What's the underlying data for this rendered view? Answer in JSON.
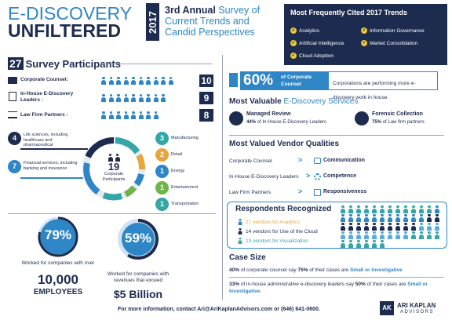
{
  "header": {
    "title_line1": "E-DISCOVERY",
    "title_line2": "UNFILTERED",
    "year": "2017",
    "subtitle_bold": "3rd Annual",
    "subtitle_rest1": " Survey of",
    "subtitle_line2": "Current Trends and",
    "subtitle_line3": "Candid Perspectives"
  },
  "trends": {
    "title": "Most Frequently Cited 2017 Trends",
    "items": [
      "Analytics",
      "Information Governance",
      "Artificial Intelligence",
      "Market Consolidation",
      "Cloud Adoption"
    ],
    "check_glyph": "✓"
  },
  "participants": {
    "total": "27",
    "title": "Survey Participants",
    "rows": [
      {
        "label": "Corporate Counsel:",
        "count": "10"
      },
      {
        "label": "In-House E-Discovery Leaders :",
        "count": "9"
      },
      {
        "label": "Law Firm Partners :",
        "count": "8"
      }
    ]
  },
  "corporate": {
    "center_number": "19",
    "center_label": "Corporate Participants",
    "left_segments": [
      {
        "count": "4",
        "label": "Life sciences, including healthcare and pharmaceutical"
      },
      {
        "count": "7",
        "label": "Financial services, including banking and insurance"
      }
    ],
    "right_segments": [
      {
        "count": "3",
        "label": "Manufacturing"
      },
      {
        "count": "2",
        "label": "Retail"
      },
      {
        "count": "1",
        "label": "Energy"
      },
      {
        "count": "1",
        "label": "Entertainment"
      },
      {
        "count": "1",
        "label": "Transportation"
      }
    ]
  },
  "employees_stat": {
    "percent": "79%",
    "percent_value": 79,
    "text": "Worked for companies with over",
    "big": "10,000",
    "big2": "EMPLOYEES"
  },
  "revenue_stat": {
    "percent": "59%",
    "percent_value": 59,
    "text": "Worked for companies with revenues that exceed",
    "big": "$5 Billion"
  },
  "corporate_counsel_stat": {
    "percent": "60%",
    "label_top": "of Corporate",
    "label_bottom": "Counsel",
    "text": "Corporations are performing more e-discovery work in house."
  },
  "services": {
    "title_bold": "Most Valuable",
    "title_rest": " E-Discovery Services",
    "items": [
      {
        "name": "Managed Review",
        "pct": "44%",
        "detail": " of In-House E-Discovery Leaders"
      },
      {
        "name": "Forensic Collection",
        "pct": "75%",
        "detail": " of Law firm partners"
      }
    ]
  },
  "vendor_qualities": {
    "title": "Most Valued Vendor Qualities",
    "rows": [
      {
        "group": "Corporate Counsel",
        "quality": "Communication"
      },
      {
        "group": "In-House E-Discovery Leaders",
        "quality": "Competence"
      },
      {
        "group": "Law Firm Partners",
        "quality": "Responsiveness"
      }
    ]
  },
  "respondents": {
    "title": "Respondents Recognized",
    "items": [
      {
        "text": "27 vendors for Analytics",
        "color": "#e7a53b"
      },
      {
        "text": "14 vendors for Use of the Cloud",
        "color": "#1d2b4f"
      },
      {
        "text": "13 vendors for Visualization",
        "color": "#34a6a6"
      }
    ]
  },
  "case_size": {
    "title": "Case Size",
    "line1_pct": "40%",
    "line1_mid": " of corporate counsel say ",
    "line1_pct2": "75%",
    "line1_rest": " of their cases are ",
    "line1_end": "Small or Investigative",
    "line2_pct": "33%",
    "line2_mid": " of in-house administrative e-discovery leaders say ",
    "line2_pct2": "50%",
    "line2_rest": " of their cases are ",
    "line2_end": "Small or Investigative",
    "line2_dot": "."
  },
  "footer": {
    "text": "For more information, contact Ari@AriKaplanAdvisors.com or (646) 641-0600.",
    "logo_mark": "AK",
    "logo_name": "ARI KAPLAN",
    "logo_sub": "ADVISORS"
  },
  "colors": {
    "navy": "#1d2b4f",
    "blue": "#2f86c6",
    "teal": "#34a6a6",
    "yellow": "#e7c93b",
    "orange": "#e7a53b",
    "green": "#6fb34a"
  }
}
